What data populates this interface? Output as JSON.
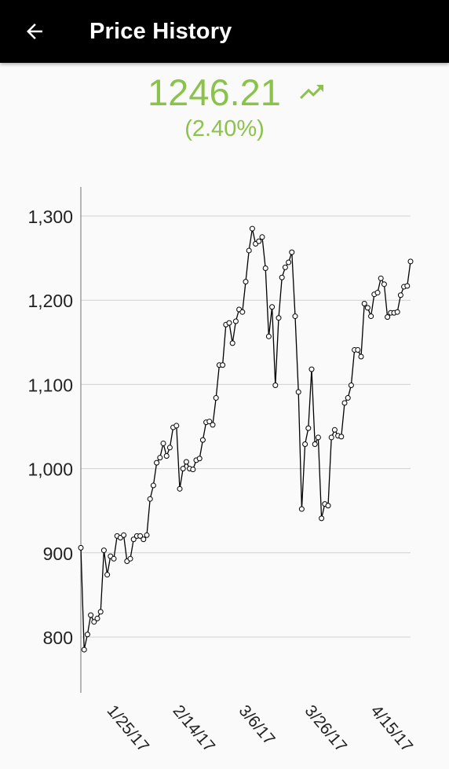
{
  "app_bar": {
    "title": "Price History",
    "back_icon": "arrow-left-icon"
  },
  "price": {
    "current": "1246.21",
    "change_percent": "(2.40%)",
    "trend_icon": "trending-up-icon",
    "accent_color": "#8bc34a"
  },
  "chart_data": {
    "type": "line",
    "title": "",
    "xlabel": "",
    "ylabel": "",
    "ylim": [
      760,
      1335
    ],
    "yticks": [
      800,
      900,
      1000,
      1100,
      1200,
      1300
    ],
    "ytick_labels": [
      "800",
      "900",
      "1,000",
      "1,100",
      "1,200",
      "1,300"
    ],
    "xtick_labels": [
      "1/25/17",
      "2/14/17",
      "3/6/17",
      "3/26/17",
      "4/15/17"
    ],
    "xtick_index": [
      12,
      32,
      52,
      72,
      92
    ],
    "grid": true,
    "markers": true,
    "line_color": "#000000",
    "series": [
      {
        "values": [
          906,
          785,
          803,
          826,
          818,
          822,
          830,
          903,
          874,
          896,
          893,
          920,
          918,
          921,
          890,
          893,
          916,
          920,
          920,
          916,
          921,
          964,
          980,
          1007,
          1013,
          1030,
          1015,
          1025,
          1049,
          1051,
          976,
          1000,
          1008,
          1000,
          999,
          1010,
          1012,
          1034,
          1055,
          1056,
          1052,
          1084,
          1123,
          1123,
          1171,
          1173,
          1149,
          1175,
          1189,
          1186,
          1222,
          1259,
          1285,
          1267,
          1270,
          1275,
          1238,
          1157,
          1192,
          1099,
          1179,
          1227,
          1239,
          1245,
          1257,
          1181,
          1091,
          952,
          1029,
          1048,
          1118,
          1029,
          1037,
          941,
          958,
          956,
          1037,
          1046,
          1039,
          1038,
          1078,
          1084,
          1099,
          1141,
          1141,
          1133,
          1196,
          1191,
          1181,
          1207,
          1209,
          1226,
          1219,
          1180,
          1185,
          1185,
          1186,
          1206,
          1216,
          1217,
          1246
        ]
      }
    ]
  }
}
